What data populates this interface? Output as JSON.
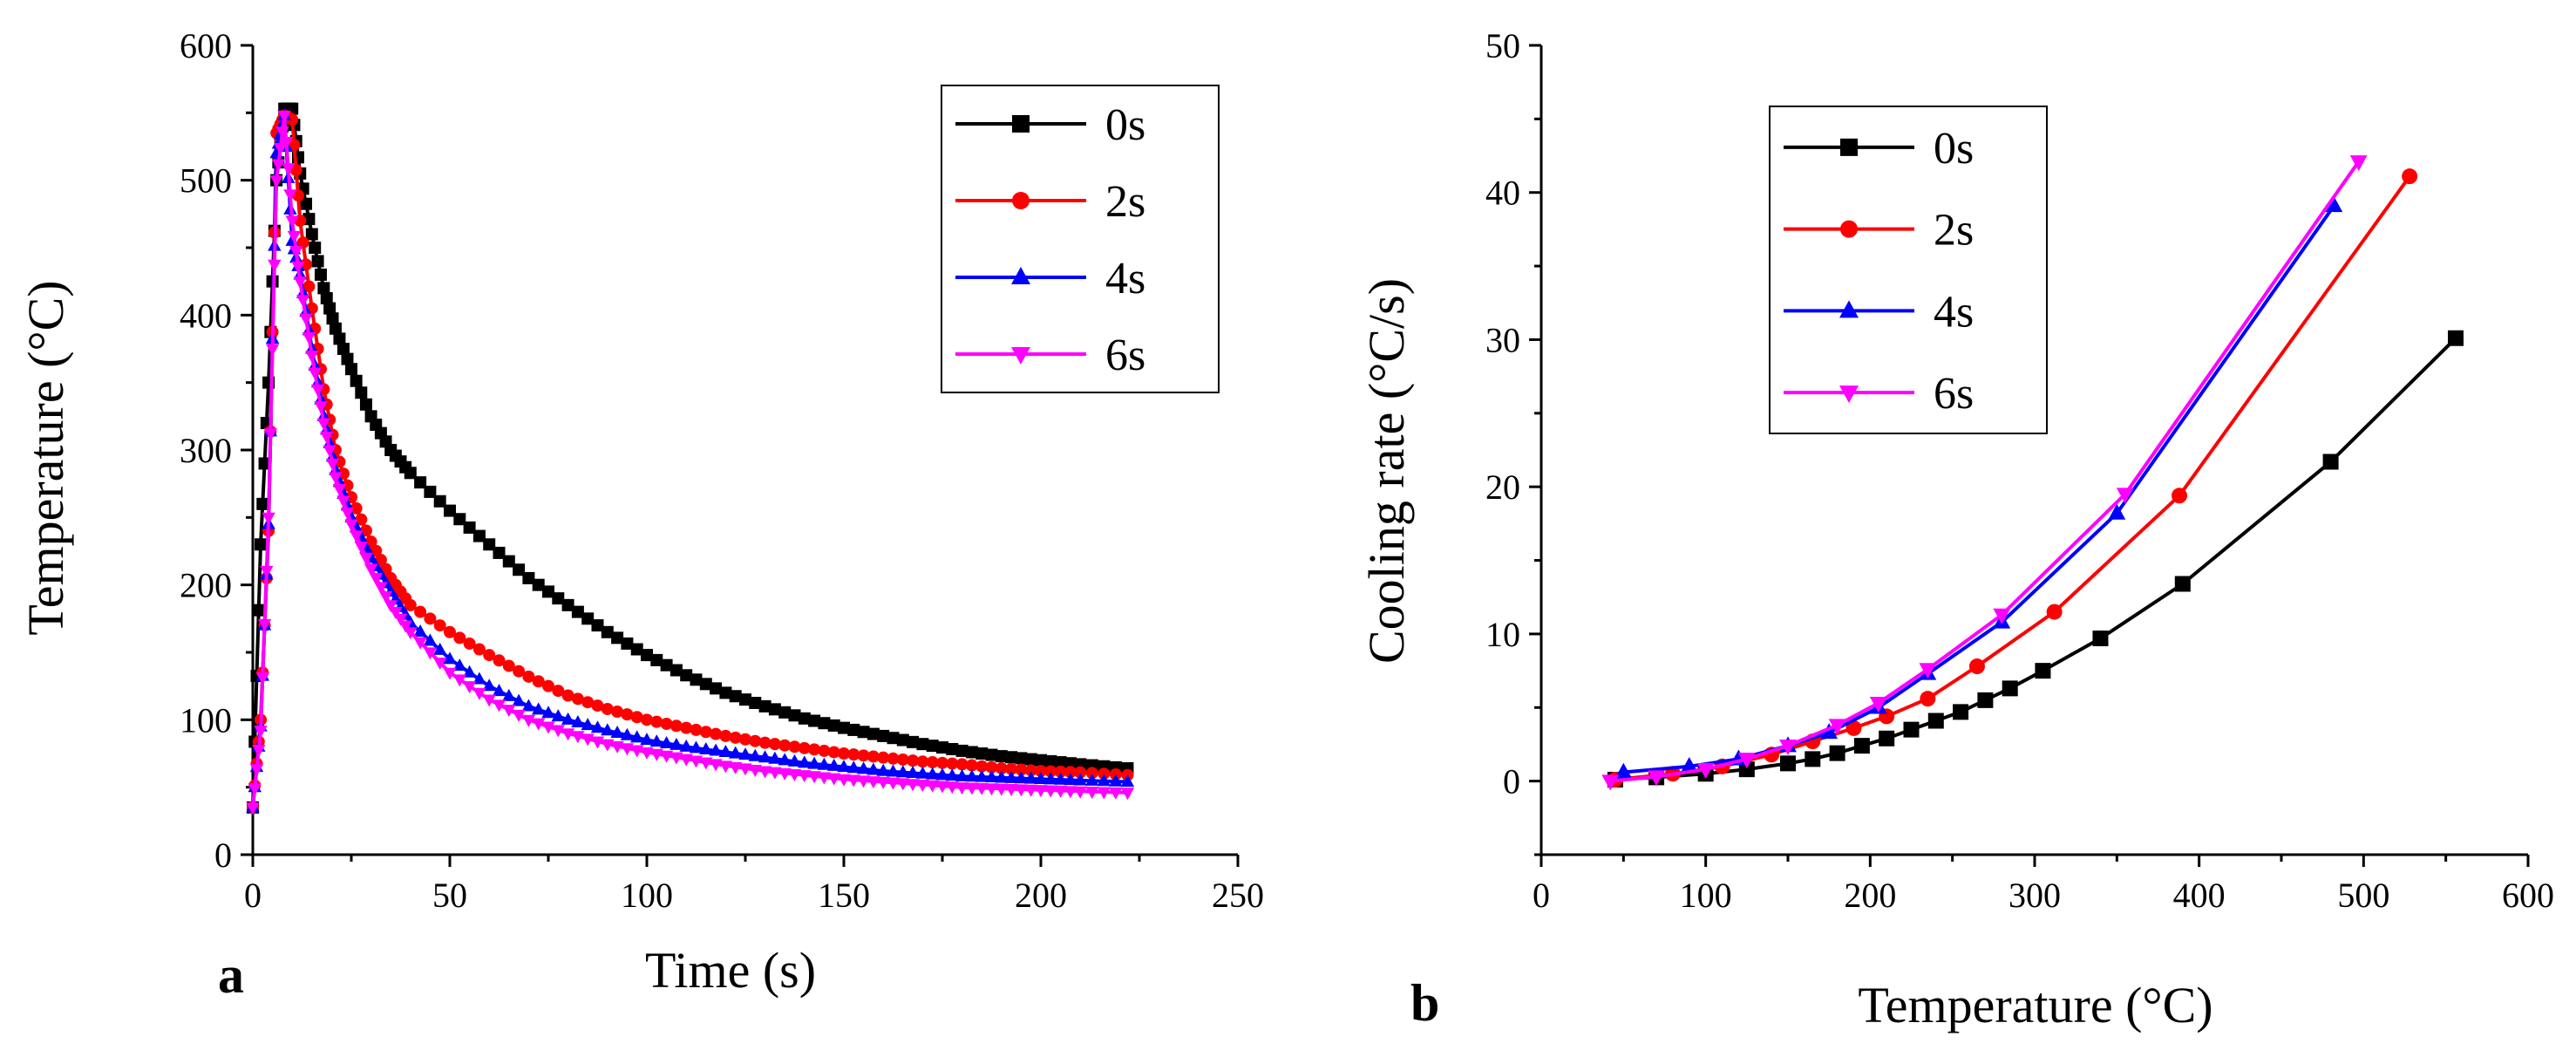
{
  "figure": {
    "panels": [
      {
        "label": "a"
      },
      {
        "label": "b"
      }
    ]
  },
  "chart_data": [
    {
      "type": "line",
      "panel": "a",
      "xlabel": "Time (s)",
      "ylabel": "Temperature (°C)",
      "xlim": [
        0,
        250
      ],
      "ylim": [
        0,
        600
      ],
      "xticks": [
        0,
        50,
        100,
        150,
        200,
        250
      ],
      "yticks": [
        0,
        100,
        200,
        300,
        400,
        500,
        600
      ],
      "legend_position": "top-right",
      "marker_every": 2,
      "series": [
        {
          "name": "0s",
          "color": "#000000",
          "marker": "square",
          "points": [
            [
              0,
              35
            ],
            [
              2,
              230
            ],
            [
              4,
              350
            ],
            [
              6,
              500
            ],
            [
              8,
              553
            ],
            [
              10,
              553
            ],
            [
              12,
              505
            ],
            [
              15,
              460
            ],
            [
              18,
              420
            ],
            [
              21,
              390
            ],
            [
              25,
              360
            ],
            [
              30,
              325
            ],
            [
              35,
              300
            ],
            [
              40,
              283
            ],
            [
              50,
              255
            ],
            [
              60,
              230
            ],
            [
              70,
              205
            ],
            [
              80,
              185
            ],
            [
              90,
              165
            ],
            [
              100,
              148
            ],
            [
              110,
              133
            ],
            [
              120,
              120
            ],
            [
              130,
              110
            ],
            [
              140,
              101
            ],
            [
              150,
              94
            ],
            [
              160,
              88
            ],
            [
              170,
              82
            ],
            [
              180,
              77
            ],
            [
              190,
              73
            ],
            [
              200,
              70
            ],
            [
              210,
              67
            ],
            [
              222,
              64
            ]
          ]
        },
        {
          "name": "2s",
          "color": "#ff0000",
          "marker": "circle",
          "points": [
            [
              0,
              35
            ],
            [
              2,
              100
            ],
            [
              4,
              240
            ],
            [
              6,
              535
            ],
            [
              8,
              548
            ],
            [
              10,
              545
            ],
            [
              12,
              470
            ],
            [
              15,
              405
            ],
            [
              18,
              345
            ],
            [
              21,
              300
            ],
            [
              25,
              265
            ],
            [
              30,
              232
            ],
            [
              35,
              205
            ],
            [
              40,
              185
            ],
            [
              50,
              165
            ],
            [
              60,
              148
            ],
            [
              70,
              132
            ],
            [
              80,
              118
            ],
            [
              90,
              108
            ],
            [
              100,
              100
            ],
            [
              110,
              94
            ],
            [
              120,
              88
            ],
            [
              130,
              83
            ],
            [
              140,
              79
            ],
            [
              150,
              75
            ],
            [
              160,
              72
            ],
            [
              170,
              69
            ],
            [
              180,
              67
            ],
            [
              190,
              64
            ],
            [
              200,
              62
            ],
            [
              210,
              61
            ],
            [
              222,
              59
            ]
          ]
        },
        {
          "name": "4s",
          "color": "#0000ff",
          "marker": "triangle-up",
          "points": [
            [
              0,
              35
            ],
            [
              2,
              95
            ],
            [
              4,
              245
            ],
            [
              6,
              520
            ],
            [
              8,
              548
            ],
            [
              10,
              455
            ],
            [
              12,
              430
            ],
            [
              15,
              375
            ],
            [
              18,
              325
            ],
            [
              21,
              285
            ],
            [
              25,
              250
            ],
            [
              30,
              220
            ],
            [
              35,
              195
            ],
            [
              40,
              172
            ],
            [
              50,
              145
            ],
            [
              60,
              125
            ],
            [
              70,
              110
            ],
            [
              80,
              100
            ],
            [
              90,
              92
            ],
            [
              100,
              85
            ],
            [
              110,
              80
            ],
            [
              120,
              76
            ],
            [
              130,
              72
            ],
            [
              140,
              68
            ],
            [
              150,
              65
            ],
            [
              160,
              62
            ],
            [
              170,
              60
            ],
            [
              180,
              58
            ],
            [
              190,
              57
            ],
            [
              200,
              56
            ],
            [
              210,
              55
            ],
            [
              222,
              54
            ]
          ]
        },
        {
          "name": "6s",
          "color": "#ff00ff",
          "marker": "triangle-down",
          "points": [
            [
              0,
              35
            ],
            [
              2,
              92
            ],
            [
              4,
              250
            ],
            [
              6,
              500
            ],
            [
              8,
              548
            ],
            [
              10,
              470
            ],
            [
              12,
              425
            ],
            [
              15,
              370
            ],
            [
              18,
              320
            ],
            [
              21,
              280
            ],
            [
              25,
              245
            ],
            [
              30,
              212
            ],
            [
              35,
              185
            ],
            [
              40,
              165
            ],
            [
              50,
              135
            ],
            [
              60,
              115
            ],
            [
              70,
              100
            ],
            [
              80,
              90
            ],
            [
              90,
              82
            ],
            [
              100,
              76
            ],
            [
              110,
              71
            ],
            [
              120,
              66
            ],
            [
              130,
              62
            ],
            [
              140,
              59
            ],
            [
              150,
              56
            ],
            [
              160,
              54
            ],
            [
              170,
              52
            ],
            [
              180,
              50
            ],
            [
              190,
              49
            ],
            [
              200,
              48
            ],
            [
              210,
              47
            ],
            [
              222,
              46
            ]
          ]
        }
      ]
    },
    {
      "type": "line",
      "panel": "b",
      "xlabel": "Temperature (°C)",
      "ylabel": "Cooling rate (°C/s)",
      "xlim": [
        0,
        600
      ],
      "ylim": [
        -5,
        50
      ],
      "xticks": [
        0,
        100,
        200,
        300,
        400,
        500,
        600
      ],
      "yticks": [
        0,
        10,
        20,
        30,
        40,
        50
      ],
      "legend_position": "top-left",
      "marker_every": 1,
      "series": [
        {
          "name": "0s",
          "color": "#000000",
          "marker": "square",
          "points": [
            [
              45,
              0.1
            ],
            [
              70,
              0.25
            ],
            [
              100,
              0.5
            ],
            [
              125,
              0.8
            ],
            [
              150,
              1.2
            ],
            [
              165,
              1.5
            ],
            [
              180,
              1.9
            ],
            [
              195,
              2.4
            ],
            [
              210,
              2.9
            ],
            [
              225,
              3.5
            ],
            [
              240,
              4.1
            ],
            [
              255,
              4.7
            ],
            [
              270,
              5.5
            ],
            [
              285,
              6.3
            ],
            [
              305,
              7.5
            ],
            [
              340,
              9.7
            ],
            [
              390,
              13.4
            ],
            [
              480,
              21.7
            ],
            [
              556,
              30.1
            ]
          ]
        },
        {
          "name": "2s",
          "color": "#ff0000",
          "marker": "circle",
          "points": [
            [
              45,
              0.1
            ],
            [
              80,
              0.5
            ],
            [
              110,
              1.0
            ],
            [
              140,
              1.8
            ],
            [
              165,
              2.7
            ],
            [
              190,
              3.6
            ],
            [
              210,
              4.4
            ],
            [
              235,
              5.6
            ],
            [
              265,
              7.8
            ],
            [
              312,
              11.5
            ],
            [
              388,
              19.4
            ],
            [
              528,
              41.1
            ]
          ]
        },
        {
          "name": "4s",
          "color": "#0000ff",
          "marker": "triangle-up",
          "points": [
            [
              50,
              0.6
            ],
            [
              90,
              1.0
            ],
            [
              120,
              1.5
            ],
            [
              150,
              2.4
            ],
            [
              175,
              3.3
            ],
            [
              205,
              5.0
            ],
            [
              235,
              7.3
            ],
            [
              280,
              10.8
            ],
            [
              350,
              18.2
            ],
            [
              482,
              39.1
            ]
          ]
        },
        {
          "name": "6s",
          "color": "#ff00ff",
          "marker": "triangle-down",
          "points": [
            [
              42,
              0.0
            ],
            [
              70,
              0.3
            ],
            [
              100,
              0.8
            ],
            [
              125,
              1.5
            ],
            [
              150,
              2.4
            ],
            [
              180,
              3.8
            ],
            [
              205,
              5.3
            ],
            [
              235,
              7.6
            ],
            [
              280,
              11.3
            ],
            [
              355,
              19.5
            ],
            [
              497,
              42.1
            ]
          ]
        }
      ]
    }
  ]
}
